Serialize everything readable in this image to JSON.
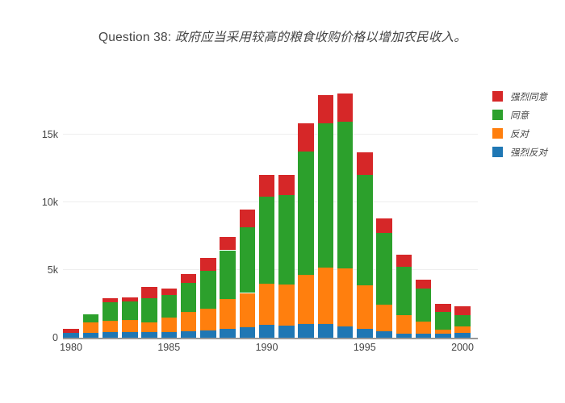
{
  "title": {
    "prefix": "Question 38: ",
    "question": "政府应当采用较高的粮食收购价格以增加农民收入。"
  },
  "colors": {
    "red": "#d62728",
    "green": "#2ca02c",
    "orange": "#ff7f0e",
    "blue": "#1f77b4",
    "axis": "#999999",
    "grid": "#eeeeee",
    "text": "#444444"
  },
  "chart_data": {
    "type": "bar",
    "stacked": true,
    "title": "Question 38: 政府应当采用较高的粮食收购价格以增加农民收入。",
    "x": [
      1980,
      1981,
      1982,
      1983,
      1984,
      1985,
      1986,
      1987,
      1988,
      1989,
      1990,
      1991,
      1992,
      1993,
      1994,
      1995,
      1996,
      1997,
      1998,
      1999,
      2000
    ],
    "series": [
      {
        "name": "强烈同意",
        "color_key": "red",
        "values": [
          300,
          0,
          300,
          280,
          790,
          510,
          695,
          910,
          975,
          1280,
          1580,
          1460,
          2075,
          2075,
          2090,
          1680,
          1090,
          850,
          660,
          570,
          610
        ]
      },
      {
        "name": "同意",
        "color_key": "green",
        "values": [
          0,
          620,
          1380,
          1380,
          1780,
          1650,
          2120,
          2815,
          3615,
          4865,
          6430,
          6640,
          9100,
          10660,
          10840,
          8130,
          5280,
          3560,
          2450,
          1290,
          830
        ]
      },
      {
        "name": "反对",
        "color_key": "orange",
        "values": [
          0,
          800,
          850,
          890,
          750,
          1100,
          1440,
          1585,
          2180,
          2510,
          3060,
          3010,
          3650,
          4150,
          4250,
          3210,
          1980,
          1380,
          860,
          350,
          530
        ]
      },
      {
        "name": "强烈反对",
        "color_key": "blue",
        "values": [
          330,
          330,
          400,
          425,
          400,
          390,
          455,
          555,
          655,
          790,
          930,
          890,
          990,
          1000,
          860,
          660,
          460,
          310,
          320,
          270,
          330
        ]
      }
    ],
    "stack_order": "bottom-to-top is reverse of series list",
    "legend_position": "right",
    "grid": true,
    "ylim": [
      0,
      18960
    ],
    "yticks": {
      "values": [
        0,
        5000,
        10000,
        15000
      ],
      "labels": [
        "0",
        "5k",
        "10k",
        "15k"
      ]
    },
    "xticks": {
      "values": [
        1980,
        1985,
        1990,
        1995,
        2000
      ],
      "labels": [
        "1980",
        "1985",
        "1990",
        "1995",
        "2000"
      ]
    }
  }
}
